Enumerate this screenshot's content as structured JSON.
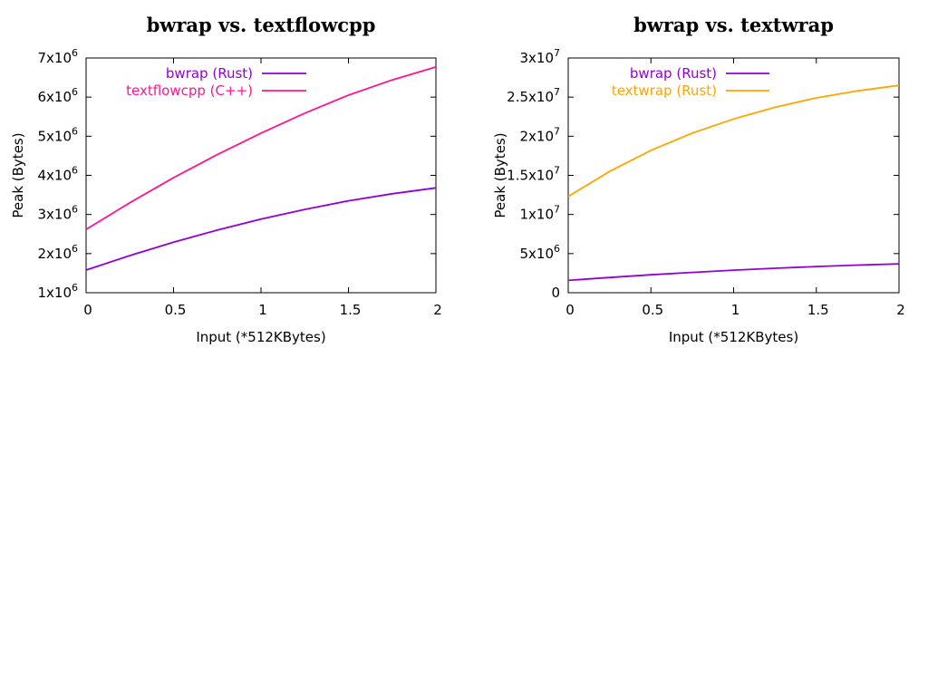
{
  "chart_data": [
    {
      "type": "line",
      "title": "bwrap vs. textflowcpp",
      "xlabel": "Input (*512KBytes)",
      "ylabel": "Peak (Bytes)",
      "xlim": [
        0,
        2
      ],
      "ylim": [
        1000000,
        7000000
      ],
      "xticks": [
        "0",
        "0.5",
        "1",
        "1.5",
        "2"
      ],
      "yticks": [
        {
          "base": "1x10",
          "exp": "6"
        },
        {
          "base": "2x10",
          "exp": "6"
        },
        {
          "base": "3x10",
          "exp": "6"
        },
        {
          "base": "4x10",
          "exp": "6"
        },
        {
          "base": "5x10",
          "exp": "6"
        },
        {
          "base": "6x10",
          "exp": "6"
        },
        {
          "base": "7x10",
          "exp": "6"
        }
      ],
      "legend_position": "top-left",
      "grid": false,
      "x": [
        0,
        0.25,
        0.5,
        0.75,
        1,
        1.25,
        1.5,
        1.75,
        2
      ],
      "series": [
        {
          "name": "bwrap (Rust)",
          "color": "#9400d3",
          "values": [
            1580000,
            1950000,
            2290000,
            2600000,
            2880000,
            3130000,
            3350000,
            3530000,
            3680000
          ]
        },
        {
          "name": "textflowcpp (C++)",
          "color": "#ff1493",
          "values": [
            2620000,
            3300000,
            3940000,
            4530000,
            5080000,
            5590000,
            6050000,
            6440000,
            6770000
          ]
        }
      ]
    },
    {
      "type": "line",
      "title": "bwrap vs. textwrap",
      "xlabel": "Input (*512KBytes)",
      "ylabel": "Peak (Bytes)",
      "xlim": [
        0,
        2
      ],
      "ylim": [
        0,
        30000000
      ],
      "xticks": [
        "0",
        "0.5",
        "1",
        "1.5",
        "2"
      ],
      "yticks": [
        {
          "base": "0",
          "exp": ""
        },
        {
          "base": "5x10",
          "exp": "6"
        },
        {
          "base": "1x10",
          "exp": "7"
        },
        {
          "base": "1.5x10",
          "exp": "7"
        },
        {
          "base": "2x10",
          "exp": "7"
        },
        {
          "base": "2.5x10",
          "exp": "7"
        },
        {
          "base": "3x10",
          "exp": "7"
        }
      ],
      "legend_position": "top-left",
      "grid": false,
      "x": [
        0,
        0.25,
        0.5,
        0.75,
        1,
        1.25,
        1.5,
        1.75,
        2
      ],
      "series": [
        {
          "name": "bwrap (Rust)",
          "color": "#9400d3",
          "values": [
            1580000,
            1950000,
            2290000,
            2600000,
            2880000,
            3130000,
            3350000,
            3530000,
            3680000
          ]
        },
        {
          "name": "textwrap (Rust)",
          "color": "#ffa500",
          "values": [
            12300000,
            15500000,
            18200000,
            20400000,
            22200000,
            23700000,
            24900000,
            25800000,
            26500000
          ]
        }
      ]
    }
  ]
}
